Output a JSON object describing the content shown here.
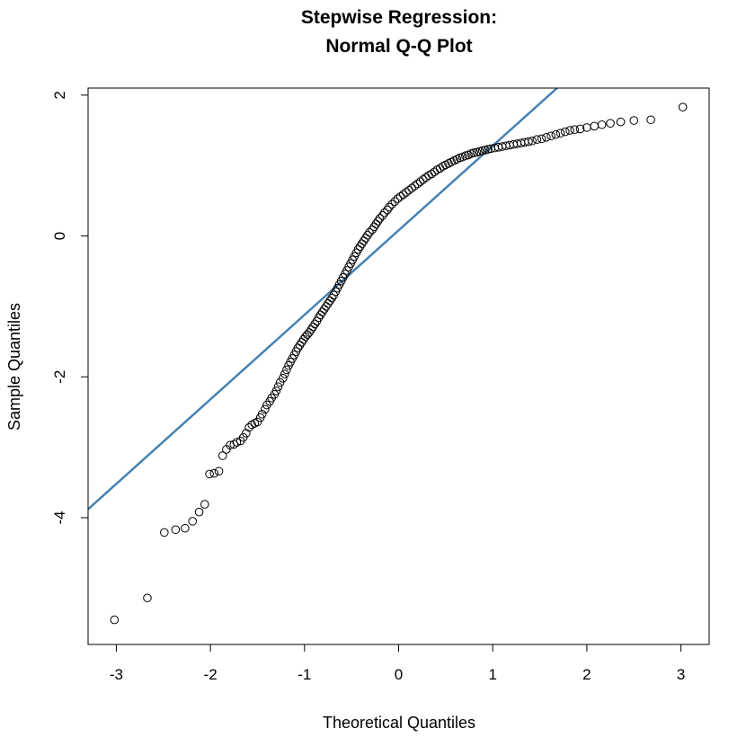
{
  "chart_data": {
    "type": "scatter",
    "title_line1": "Stepwise Regression:",
    "title_line2": "Normal Q-Q Plot",
    "xlabel": "Theoretical Quantiles",
    "ylabel": "Sample Quantiles",
    "xlim": [
      -3.3,
      3.3
    ],
    "ylim": [
      -5.8,
      2.1
    ],
    "xticks": [
      -3,
      -2,
      -1,
      0,
      1,
      2,
      3
    ],
    "xtick_labels": [
      "-3",
      "-2",
      "-1",
      "0",
      "1",
      "2",
      "3"
    ],
    "yticks": [
      -4,
      -2,
      0,
      2
    ],
    "ytick_labels": [
      "-4",
      "-2",
      "0",
      "2"
    ],
    "reference_line": {
      "intercept": 0.08,
      "slope": 1.2,
      "color": "#4682B4"
    },
    "point_style": {
      "shape": "open-circle",
      "color": "#000000"
    },
    "grid": false,
    "points": [
      {
        "x": -3.02,
        "y": -5.45
      },
      {
        "x": -2.67,
        "y": -5.14
      },
      {
        "x": -2.49,
        "y": -4.21
      },
      {
        "x": -2.37,
        "y": -4.17
      },
      {
        "x": -2.27,
        "y": -4.15
      },
      {
        "x": -2.19,
        "y": -4.05
      },
      {
        "x": -2.12,
        "y": -3.92
      },
      {
        "x": -2.06,
        "y": -3.81
      },
      {
        "x": -2.01,
        "y": -3.38
      },
      {
        "x": -1.96,
        "y": -3.37
      },
      {
        "x": -1.91,
        "y": -3.34
      },
      {
        "x": -1.87,
        "y": -3.12
      },
      {
        "x": -1.83,
        "y": -3.03
      },
      {
        "x": -1.79,
        "y": -2.97
      },
      {
        "x": -1.75,
        "y": -2.96
      },
      {
        "x": -1.72,
        "y": -2.93
      },
      {
        "x": -1.68,
        "y": -2.91
      },
      {
        "x": -1.65,
        "y": -2.86
      },
      {
        "x": -1.62,
        "y": -2.8
      },
      {
        "x": -1.59,
        "y": -2.72
      },
      {
        "x": -1.56,
        "y": -2.68
      },
      {
        "x": -1.53,
        "y": -2.66
      },
      {
        "x": -1.5,
        "y": -2.64
      },
      {
        "x": -1.47,
        "y": -2.58
      },
      {
        "x": -1.45,
        "y": -2.53
      },
      {
        "x": -1.42,
        "y": -2.46
      },
      {
        "x": -1.4,
        "y": -2.4
      },
      {
        "x": -1.37,
        "y": -2.35
      },
      {
        "x": -1.35,
        "y": -2.3
      },
      {
        "x": -1.32,
        "y": -2.25
      },
      {
        "x": -1.3,
        "y": -2.2
      },
      {
        "x": -1.28,
        "y": -2.14
      },
      {
        "x": -1.26,
        "y": -2.08
      },
      {
        "x": -1.23,
        "y": -2.02
      },
      {
        "x": -1.21,
        "y": -1.96
      },
      {
        "x": -1.19,
        "y": -1.9
      },
      {
        "x": -1.17,
        "y": -1.84
      },
      {
        "x": -1.15,
        "y": -1.79
      },
      {
        "x": -1.13,
        "y": -1.74
      },
      {
        "x": -1.11,
        "y": -1.69
      },
      {
        "x": -1.09,
        "y": -1.64
      },
      {
        "x": -1.07,
        "y": -1.59
      },
      {
        "x": -1.05,
        "y": -1.55
      },
      {
        "x": -1.03,
        "y": -1.51
      },
      {
        "x": -1.01,
        "y": -1.47
      },
      {
        "x": -0.99,
        "y": -1.43
      },
      {
        "x": -0.97,
        "y": -1.4
      },
      {
        "x": -0.95,
        "y": -1.37
      },
      {
        "x": -0.93,
        "y": -1.33
      },
      {
        "x": -0.91,
        "y": -1.29
      },
      {
        "x": -0.89,
        "y": -1.25
      },
      {
        "x": -0.87,
        "y": -1.21
      },
      {
        "x": -0.85,
        "y": -1.16
      },
      {
        "x": -0.83,
        "y": -1.12
      },
      {
        "x": -0.81,
        "y": -1.08
      },
      {
        "x": -0.79,
        "y": -1.04
      },
      {
        "x": -0.77,
        "y": -1.0
      },
      {
        "x": -0.75,
        "y": -0.96
      },
      {
        "x": -0.73,
        "y": -0.92
      },
      {
        "x": -0.71,
        "y": -0.88
      },
      {
        "x": -0.69,
        "y": -0.84
      },
      {
        "x": -0.67,
        "y": -0.79
      },
      {
        "x": -0.65,
        "y": -0.74
      },
      {
        "x": -0.63,
        "y": -0.69
      },
      {
        "x": -0.61,
        "y": -0.64
      },
      {
        "x": -0.59,
        "y": -0.59
      },
      {
        "x": -0.57,
        "y": -0.54
      },
      {
        "x": -0.55,
        "y": -0.49
      },
      {
        "x": -0.53,
        "y": -0.44
      },
      {
        "x": -0.51,
        "y": -0.39
      },
      {
        "x": -0.49,
        "y": -0.34
      },
      {
        "x": -0.47,
        "y": -0.29
      },
      {
        "x": -0.45,
        "y": -0.24
      },
      {
        "x": -0.43,
        "y": -0.19
      },
      {
        "x": -0.41,
        "y": -0.15
      },
      {
        "x": -0.39,
        "y": -0.11
      },
      {
        "x": -0.37,
        "y": -0.07
      },
      {
        "x": -0.35,
        "y": -0.03
      },
      {
        "x": -0.33,
        "y": 0.01
      },
      {
        "x": -0.31,
        "y": 0.05
      },
      {
        "x": -0.28,
        "y": 0.09
      },
      {
        "x": -0.26,
        "y": 0.13
      },
      {
        "x": -0.24,
        "y": 0.17
      },
      {
        "x": -0.22,
        "y": 0.21
      },
      {
        "x": -0.2,
        "y": 0.25
      },
      {
        "x": -0.17,
        "y": 0.29
      },
      {
        "x": -0.15,
        "y": 0.33
      },
      {
        "x": -0.12,
        "y": 0.37
      },
      {
        "x": -0.1,
        "y": 0.41
      },
      {
        "x": -0.07,
        "y": 0.45
      },
      {
        "x": -0.04,
        "y": 0.49
      },
      {
        "x": -0.01,
        "y": 0.53
      },
      {
        "x": 0.02,
        "y": 0.56
      },
      {
        "x": 0.05,
        "y": 0.59
      },
      {
        "x": 0.08,
        "y": 0.62
      },
      {
        "x": 0.11,
        "y": 0.65
      },
      {
        "x": 0.14,
        "y": 0.68
      },
      {
        "x": 0.17,
        "y": 0.71
      },
      {
        "x": 0.2,
        "y": 0.74
      },
      {
        "x": 0.23,
        "y": 0.77
      },
      {
        "x": 0.26,
        "y": 0.8
      },
      {
        "x": 0.29,
        "y": 0.83
      },
      {
        "x": 0.32,
        "y": 0.86
      },
      {
        "x": 0.35,
        "y": 0.88
      },
      {
        "x": 0.38,
        "y": 0.91
      },
      {
        "x": 0.41,
        "y": 0.94
      },
      {
        "x": 0.44,
        "y": 0.96
      },
      {
        "x": 0.47,
        "y": 0.99
      },
      {
        "x": 0.5,
        "y": 1.01
      },
      {
        "x": 0.53,
        "y": 1.03
      },
      {
        "x": 0.56,
        "y": 1.05
      },
      {
        "x": 0.59,
        "y": 1.07
      },
      {
        "x": 0.62,
        "y": 1.09
      },
      {
        "x": 0.65,
        "y": 1.11
      },
      {
        "x": 0.68,
        "y": 1.12
      },
      {
        "x": 0.71,
        "y": 1.14
      },
      {
        "x": 0.74,
        "y": 1.15
      },
      {
        "x": 0.77,
        "y": 1.17
      },
      {
        "x": 0.8,
        "y": 1.18
      },
      {
        "x": 0.83,
        "y": 1.19
      },
      {
        "x": 0.86,
        "y": 1.2
      },
      {
        "x": 0.89,
        "y": 1.21
      },
      {
        "x": 0.92,
        "y": 1.22
      },
      {
        "x": 0.95,
        "y": 1.23
      },
      {
        "x": 0.98,
        "y": 1.24
      },
      {
        "x": 1.02,
        "y": 1.25
      },
      {
        "x": 1.06,
        "y": 1.26
      },
      {
        "x": 1.1,
        "y": 1.27
      },
      {
        "x": 1.14,
        "y": 1.28
      },
      {
        "x": 1.18,
        "y": 1.29
      },
      {
        "x": 1.22,
        "y": 1.3
      },
      {
        "x": 1.26,
        "y": 1.31
      },
      {
        "x": 1.3,
        "y": 1.32
      },
      {
        "x": 1.34,
        "y": 1.33
      },
      {
        "x": 1.38,
        "y": 1.34
      },
      {
        "x": 1.42,
        "y": 1.35
      },
      {
        "x": 1.47,
        "y": 1.37
      },
      {
        "x": 1.52,
        "y": 1.38
      },
      {
        "x": 1.57,
        "y": 1.4
      },
      {
        "x": 1.62,
        "y": 1.42
      },
      {
        "x": 1.67,
        "y": 1.44
      },
      {
        "x": 1.72,
        "y": 1.46
      },
      {
        "x": 1.77,
        "y": 1.48
      },
      {
        "x": 1.82,
        "y": 1.5
      },
      {
        "x": 1.87,
        "y": 1.51
      },
      {
        "x": 1.93,
        "y": 1.52
      },
      {
        "x": 2.0,
        "y": 1.54
      },
      {
        "x": 2.08,
        "y": 1.56
      },
      {
        "x": 2.16,
        "y": 1.58
      },
      {
        "x": 2.25,
        "y": 1.6
      },
      {
        "x": 2.36,
        "y": 1.62
      },
      {
        "x": 2.5,
        "y": 1.64
      },
      {
        "x": 2.68,
        "y": 1.65
      },
      {
        "x": 3.02,
        "y": 1.83
      }
    ]
  }
}
